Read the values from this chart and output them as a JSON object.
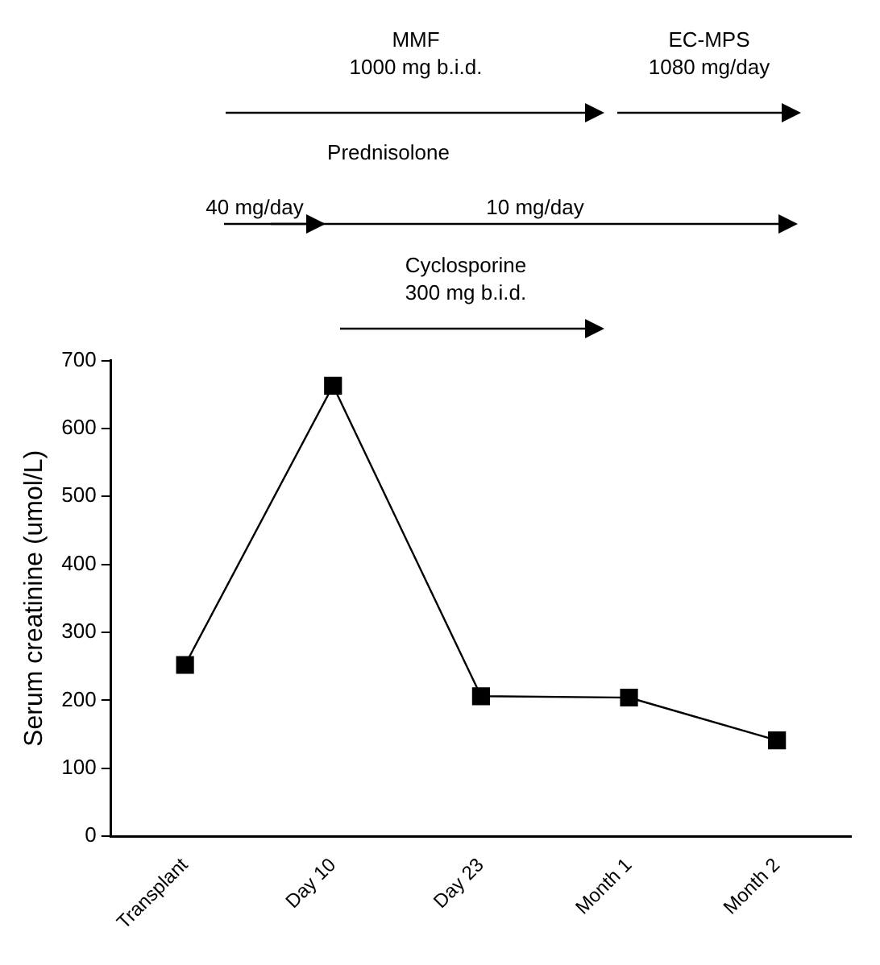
{
  "chart_data": {
    "type": "line",
    "ylabel": "Serum creatinine (umol/L)",
    "categories": [
      "Transplant",
      "Day 10",
      "Day 23",
      "Month 1",
      "Month 2"
    ],
    "series": [
      {
        "color": "#000000",
        "values": [
          252,
          663,
          206,
          204,
          141
        ]
      }
    ],
    "ylim": [
      0,
      700
    ],
    "yticks": [
      0,
      100,
      200,
      300,
      400,
      500,
      600,
      700
    ],
    "grid": false,
    "legend": false,
    "marker": "square",
    "line_style": "solid",
    "annotations": [
      "MMF\n1000 mg b.i.d.",
      "EC-MPS\n1080 mg/day",
      "Prednisolone",
      "40 mg/day",
      "10 mg/day",
      "Cyclosporine\n300 mg b.i.d."
    ]
  }
}
